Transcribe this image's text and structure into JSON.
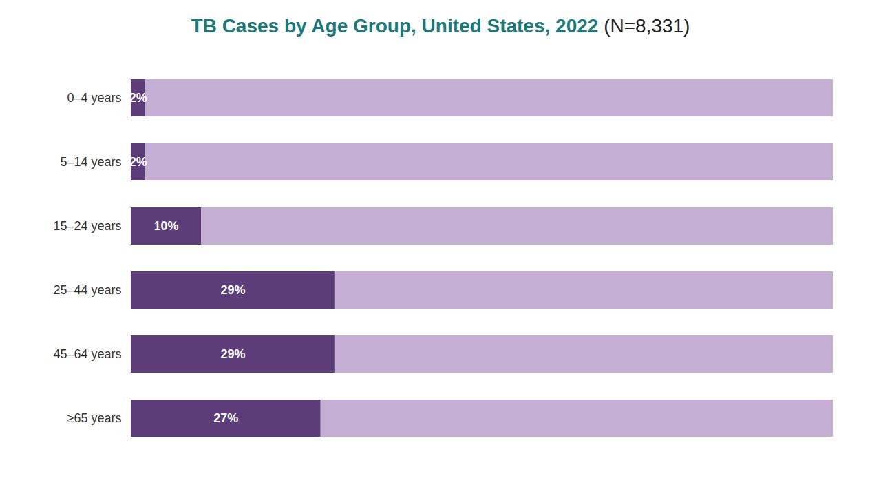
{
  "chart_data": {
    "type": "bar",
    "orientation": "horizontal",
    "title": "TB Cases by Age Group, United States, 2022",
    "subtitle": "(N=8,331)",
    "categories": [
      "0–4 years",
      "5–14 years",
      "15–24 years",
      "25–44 years",
      "45–64 years",
      "≥65 years"
    ],
    "values": [
      2,
      2,
      10,
      29,
      29,
      27
    ],
    "value_labels": [
      "2%",
      "2%",
      "10%",
      "29%",
      "29%",
      "27%"
    ],
    "data_labels": true,
    "color": "#5c3d7a",
    "xlim": [
      0,
      100
    ],
    "tick_labels": "y",
    "grid": false
  }
}
